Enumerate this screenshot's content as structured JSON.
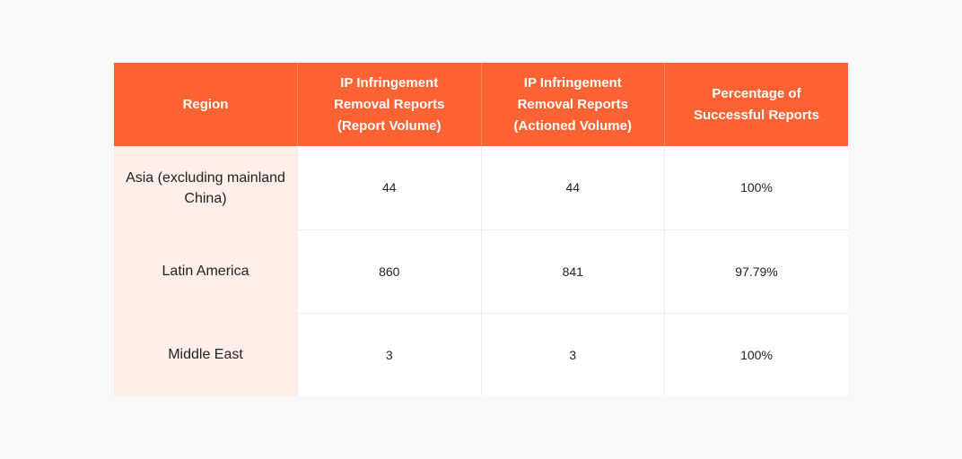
{
  "table": {
    "headers": [
      "Region",
      "IP Infringement Removal Reports (Report Volume)",
      "IP Infringement Removal Reports (Actioned Volume)",
      "Percentage of Successful Reports"
    ],
    "rows": [
      {
        "region": "Asia (excluding mainland China)",
        "report_volume": "44",
        "actioned_volume": "44",
        "success_pct": "100%"
      },
      {
        "region": "Latin America",
        "report_volume": "860",
        "actioned_volume": "841",
        "success_pct": "97.79%"
      },
      {
        "region": "Middle East",
        "report_volume": "3",
        "actioned_volume": "3",
        "success_pct": "100%"
      }
    ]
  },
  "colors": {
    "header_bg": "#ff6333",
    "region_col_bg": "#ffeeea",
    "page_bg": "#f9f9f9"
  }
}
